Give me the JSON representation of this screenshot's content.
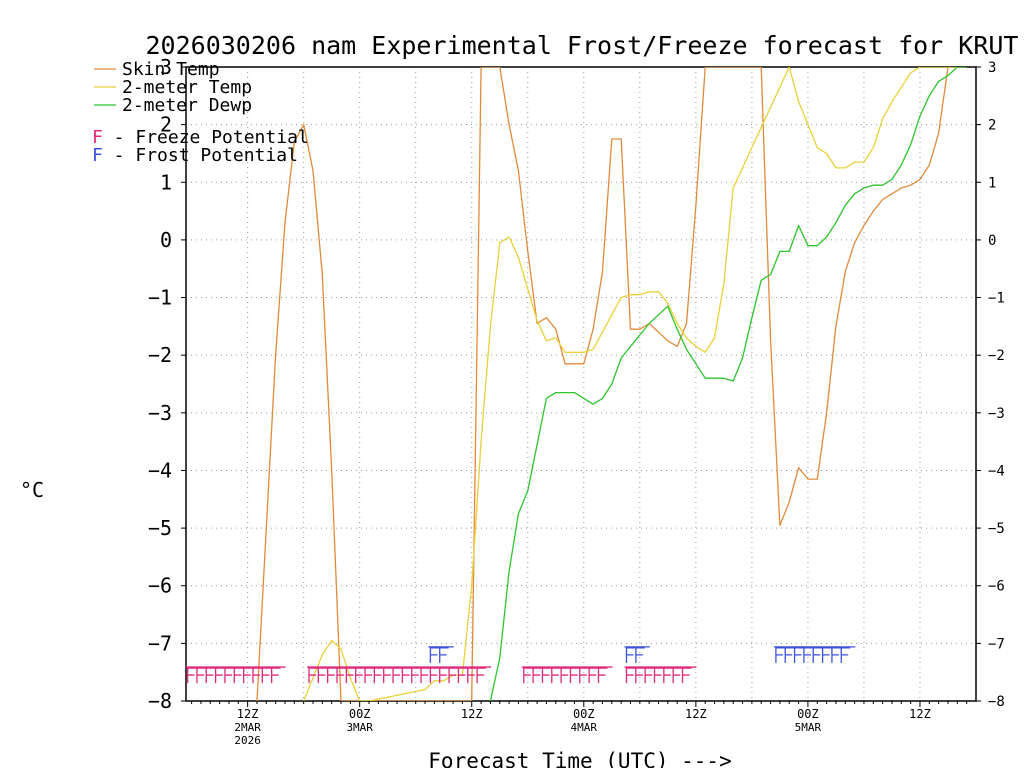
{
  "chart_data": {
    "type": "line",
    "title": "2026030206 nam Experimental Frost/Freeze forecast for KRUT",
    "xlabel": "Forecast Time (UTC) --->",
    "ylabel": "°C",
    "x_unit": "forecast hours from 06Z 2 Mar 2026",
    "xlim": [
      -0.6,
      84
    ],
    "ylim": [
      -8,
      3
    ],
    "y_ticks": [
      -8,
      -7,
      -6,
      -5,
      -4,
      -3,
      -2,
      -1,
      0,
      1,
      2,
      3
    ],
    "y_tick_labels": [
      "−8",
      "−7",
      "−6",
      "−5",
      "−4",
      "−3",
      "−2",
      "−1",
      "0",
      "1",
      "2",
      "3"
    ],
    "x_ticks": [
      {
        "hour": 6,
        "label": "12Z",
        "date": "2MAR",
        "year": "2026"
      },
      {
        "hour": 18,
        "label": "00Z",
        "date": "3MAR",
        "year": ""
      },
      {
        "hour": 30,
        "label": "12Z",
        "date": "",
        "year": ""
      },
      {
        "hour": 42,
        "label": "00Z",
        "date": "4MAR",
        "year": ""
      },
      {
        "hour": 54,
        "label": "12Z",
        "date": "",
        "year": ""
      },
      {
        "hour": 66,
        "label": "00Z",
        "date": "5MAR",
        "year": ""
      },
      {
        "hour": 78,
        "label": "12Z",
        "date": "",
        "year": ""
      }
    ],
    "grid": true,
    "legend": {
      "series_entries": [
        "Skin Temp",
        "2-meter Temp",
        "2-meter Dewp"
      ],
      "marker_entries": [
        {
          "symbol": "F",
          "text": " - Freeze Potential",
          "color": "#e0287a"
        },
        {
          "symbol": "F",
          "text": " - Frost Potential",
          "color": "#3c50e0"
        }
      ]
    },
    "series": [
      {
        "name": "Skin Temp",
        "color": "#e08a3c",
        "x": [
          7,
          8,
          9,
          10,
          11,
          12,
          13,
          14,
          15,
          16,
          17,
          18,
          27,
          28,
          29,
          30,
          31,
          32,
          33,
          34,
          35,
          36,
          37,
          38,
          39,
          40,
          41,
          42,
          43,
          44,
          45,
          46,
          47,
          48,
          49,
          50,
          51,
          52,
          53,
          54,
          55,
          56,
          60,
          61,
          62,
          63,
          64,
          65,
          66,
          67,
          68,
          69,
          70,
          71,
          72,
          73,
          74,
          75,
          76,
          77,
          78,
          79,
          80,
          81,
          82,
          83
        ],
        "y": [
          -8,
          -5,
          -2,
          0.3,
          1.7,
          2.0,
          1.2,
          -0.6,
          -4.0,
          -8,
          -8,
          -8,
          -8,
          -8,
          -8,
          -8,
          3.0,
          3.0,
          3.0,
          2.0,
          1.2,
          -0.2,
          -1.45,
          -1.35,
          -1.55,
          -2.15,
          -2.15,
          -2.15,
          -1.55,
          -0.55,
          1.75,
          1.75,
          -1.55,
          -1.55,
          -1.45,
          -1.6,
          -1.75,
          -1.85,
          -1.45,
          0.6,
          3.0,
          3.0,
          3.0,
          3.0,
          -1.75,
          -4.95,
          -4.55,
          -3.95,
          -4.15,
          -4.15,
          -3.0,
          -1.5,
          -0.55,
          -0.05,
          0.25,
          0.5,
          0.7,
          0.8,
          0.9,
          0.95,
          1.05,
          1.3,
          1.85,
          3.0,
          3.0,
          3.0
        ]
      },
      {
        "name": "2-meter Temp",
        "color": "#e8d13a",
        "x": [
          12,
          13,
          14,
          15,
          16,
          17,
          18,
          19,
          25,
          26,
          27,
          28,
          29,
          30,
          31,
          32,
          33,
          34,
          35,
          36,
          37,
          38,
          39,
          40,
          41,
          42,
          43,
          44,
          45,
          46,
          47,
          48,
          49,
          50,
          51,
          52,
          53,
          54,
          55,
          56,
          57,
          58,
          64,
          65,
          66,
          67,
          68,
          69,
          70,
          71,
          72,
          73,
          74,
          75,
          76,
          77,
          78,
          79,
          80,
          81,
          82
        ],
        "y": [
          -8,
          -7.6,
          -7.2,
          -6.95,
          -7.1,
          -7.6,
          -8,
          -8,
          -7.8,
          -7.65,
          -7.65,
          -7.55,
          -7.55,
          -6.0,
          -3.5,
          -1.5,
          -0.05,
          0.05,
          -0.3,
          -0.85,
          -1.4,
          -1.75,
          -1.7,
          -1.95,
          -1.95,
          -1.95,
          -1.9,
          -1.6,
          -1.3,
          -1.0,
          -0.95,
          -0.95,
          -0.9,
          -0.9,
          -1.1,
          -1.45,
          -1.7,
          -1.85,
          -1.95,
          -1.7,
          -0.75,
          0.9,
          3.0,
          2.4,
          2.0,
          1.6,
          1.5,
          1.25,
          1.25,
          1.35,
          1.35,
          1.6,
          2.1,
          2.4,
          2.65,
          2.9,
          3.0,
          3.0,
          3.0,
          3.0,
          3.0
        ]
      },
      {
        "name": "2-meter Dewp",
        "color": "#2ec42e",
        "x": [
          32,
          33,
          34,
          35,
          36,
          37,
          38,
          39,
          40,
          41,
          42,
          43,
          44,
          45,
          46,
          47,
          48,
          49,
          50,
          51,
          52,
          53,
          54,
          55,
          56,
          57,
          58,
          59,
          60,
          61,
          62,
          63,
          64,
          65,
          66,
          67,
          68,
          69,
          70,
          71,
          72,
          73,
          74,
          75,
          76,
          77,
          78,
          79,
          80,
          81,
          82,
          83
        ],
        "y": [
          -8,
          -7.25,
          -5.75,
          -4.75,
          -4.35,
          -3.55,
          -2.75,
          -2.65,
          -2.65,
          -2.65,
          -2.75,
          -2.85,
          -2.75,
          -2.5,
          -2.05,
          -1.85,
          -1.65,
          -1.45,
          -1.3,
          -1.15,
          -1.55,
          -1.9,
          -2.15,
          -2.4,
          -2.4,
          -2.4,
          -2.45,
          -2.05,
          -1.35,
          -0.7,
          -0.6,
          -0.2,
          -0.2,
          0.25,
          -0.1,
          -0.1,
          0.05,
          0.3,
          0.6,
          0.8,
          0.9,
          0.95,
          0.95,
          1.05,
          1.3,
          1.65,
          2.15,
          2.5,
          2.75,
          2.85,
          3.0,
          3.0
        ]
      }
    ],
    "markers": [
      {
        "type": "Freeze",
        "color": "#e0287a",
        "symbol": "F",
        "y_level": -7.55,
        "hours": [
          0,
          1,
          2,
          3,
          4,
          5,
          6,
          7,
          8,
          9
        ]
      },
      {
        "type": "Freeze",
        "color": "#e0287a",
        "symbol": "F",
        "y_level": -7.55,
        "hours": [
          13,
          14,
          15,
          16,
          17,
          18,
          19,
          20,
          21,
          22,
          23,
          24,
          25,
          26,
          27,
          28,
          29,
          30,
          31
        ]
      },
      {
        "type": "Frost",
        "color": "#3c50e0",
        "symbol": "F",
        "y_level": -7.2,
        "hours": [
          26,
          27
        ]
      },
      {
        "type": "Freeze",
        "color": "#e0287a",
        "symbol": "F",
        "y_level": -7.55,
        "hours": [
          36,
          37,
          38,
          39,
          40,
          41,
          42,
          43,
          44
        ]
      },
      {
        "type": "Frost",
        "color": "#3c50e0",
        "symbol": "F",
        "y_level": -7.2,
        "hours": [
          47,
          48
        ]
      },
      {
        "type": "Freeze",
        "color": "#e0287a",
        "symbol": "F",
        "y_level": -7.55,
        "hours": [
          47,
          48,
          49,
          50,
          51,
          52,
          53
        ]
      },
      {
        "type": "Frost",
        "color": "#3c50e0",
        "symbol": "F",
        "y_level": -7.2,
        "hours": [
          63,
          64,
          65,
          66,
          67,
          68,
          69,
          70
        ]
      }
    ]
  }
}
